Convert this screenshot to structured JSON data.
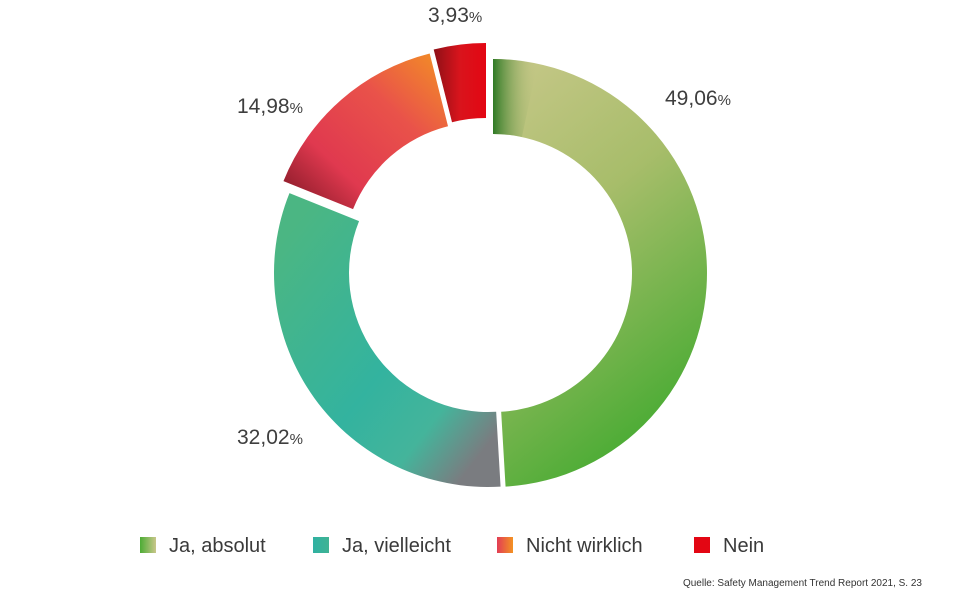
{
  "chart_data": {
    "type": "pie",
    "subtype": "donut",
    "title": "",
    "slices": [
      {
        "name": "Ja, absolut",
        "value": 49.06,
        "label": "49,06",
        "unit": "%",
        "color_start": "#c9c78a",
        "color_end": "#4cac35"
      },
      {
        "name": "Ja, vielleicht",
        "value": 32.02,
        "label": "32,02",
        "unit": "%",
        "color_start": "#35b5a0",
        "color_end": "#56b98a"
      },
      {
        "name": "Nicht wirklich",
        "value": 14.98,
        "label": "14,98",
        "unit": "%",
        "color_start": "#e23d55",
        "color_end": "#f08a2a"
      },
      {
        "name": "Nein",
        "value": 3.93,
        "label": "3,93",
        "unit": "%",
        "color_start": "#d9141c",
        "color_end": "#e30613"
      }
    ],
    "legend_placement": "bottom"
  },
  "source": "Quelle: Safety Management Trend Report 2021, S. 23"
}
